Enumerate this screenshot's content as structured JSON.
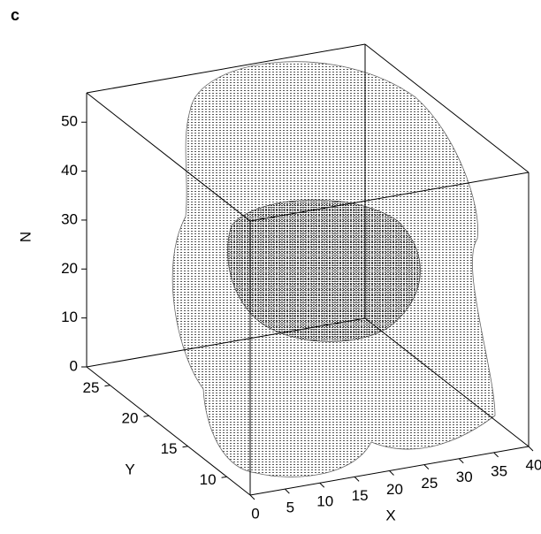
{
  "chart_data": {
    "type": "scatter3d",
    "panel_label": "c",
    "xlabel": "X",
    "ylabel": "Y",
    "zlabel": "N",
    "xlim": [
      0,
      40
    ],
    "ylim": [
      7,
      28
    ],
    "zlim": [
      0,
      56
    ],
    "xticks": [
      0,
      5,
      10,
      15,
      20,
      25,
      30,
      35,
      40
    ],
    "yticks": [
      10,
      15,
      20,
      25
    ],
    "zticks": [
      0,
      10,
      20,
      30,
      40,
      50
    ],
    "color": "#000000"
  }
}
